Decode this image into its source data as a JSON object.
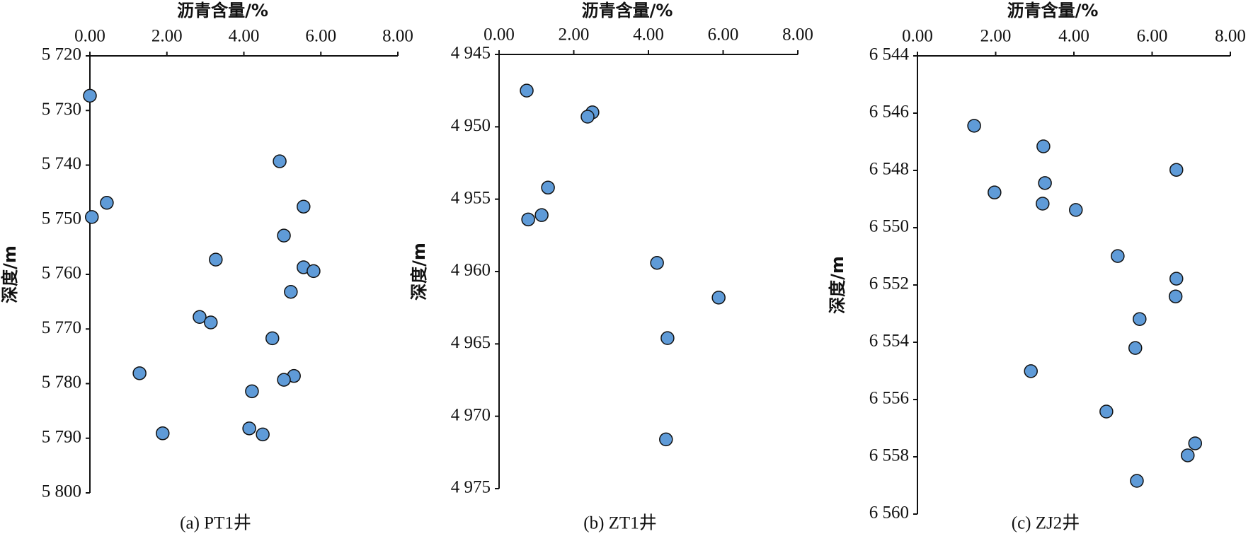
{
  "chart_data": [
    {
      "type": "scatter",
      "caption": "(a) PT1井",
      "x_label": "沥青含量/%",
      "y_label": "深度/m",
      "x_axis_position": "top",
      "y_inverted": true,
      "color": "#5f9bd8",
      "xlim": [
        0,
        8
      ],
      "ylim": [
        5720,
        5800
      ],
      "xticks": [
        {
          "value": 0,
          "label": "0.00"
        },
        {
          "value": 2,
          "label": "2.00"
        },
        {
          "value": 4,
          "label": "4.00"
        },
        {
          "value": 6,
          "label": "6.00"
        },
        {
          "value": 8,
          "label": "8.00"
        }
      ],
      "yticks": [
        {
          "value": 5720,
          "label": "5 720"
        },
        {
          "value": 5730,
          "label": "5 730"
        },
        {
          "value": 5740,
          "label": "5 740"
        },
        {
          "value": 5750,
          "label": "5 750"
        },
        {
          "value": 5760,
          "label": "5 760"
        },
        {
          "value": 5770,
          "label": "5 770"
        },
        {
          "value": 5780,
          "label": "5 780"
        },
        {
          "value": 5790,
          "label": "5 790"
        },
        {
          "value": 5800,
          "label": "5 800"
        }
      ],
      "x": [
        0.0,
        4.93,
        0.44,
        0.05,
        5.55,
        5.04,
        3.27,
        5.55,
        5.81,
        5.22,
        2.85,
        3.14,
        4.74,
        1.29,
        5.3,
        5.04,
        4.21,
        1.89,
        4.14,
        4.49
      ],
      "values": [
        5727.3,
        5739.3,
        5746.9,
        5749.5,
        5747.6,
        5752.9,
        5757.3,
        5758.7,
        5759.4,
        5763.2,
        5767.8,
        5768.8,
        5771.7,
        5778.1,
        5778.6,
        5779.3,
        5781.4,
        5789.1,
        5788.2,
        5789.3
      ]
    },
    {
      "type": "scatter",
      "caption": "(b) ZT1井",
      "x_label": "沥青含量/%",
      "y_label": "深度/m",
      "x_axis_position": "top",
      "y_inverted": true,
      "color": "#5f9bd8",
      "xlim": [
        0,
        8
      ],
      "ylim": [
        4945,
        4975
      ],
      "xticks": [
        {
          "value": 0,
          "label": "0.00"
        },
        {
          "value": 2,
          "label": "2.00"
        },
        {
          "value": 4,
          "label": "4.00"
        },
        {
          "value": 6,
          "label": "6.00"
        },
        {
          "value": 8,
          "label": "8.00"
        }
      ],
      "yticks": [
        {
          "value": 4945,
          "label": "4 945"
        },
        {
          "value": 4950,
          "label": "4 950"
        },
        {
          "value": 4955,
          "label": "4 955"
        },
        {
          "value": 4960,
          "label": "4 960"
        },
        {
          "value": 4965,
          "label": "4 965"
        },
        {
          "value": 4970,
          "label": "4 970"
        },
        {
          "value": 4975,
          "label": "4 975"
        }
      ],
      "x": [
        0.74,
        2.5,
        2.37,
        1.31,
        0.78,
        1.14,
        4.23,
        5.88,
        4.51,
        4.47
      ],
      "values": [
        4947.5,
        4949.0,
        4949.3,
        4954.2,
        4956.4,
        4956.1,
        4959.4,
        4961.8,
        4964.6,
        4971.6
      ]
    },
    {
      "type": "scatter",
      "caption": "(c) ZJ2井",
      "x_label": "沥青含量/%",
      "y_label": "深度/m",
      "x_axis_position": "top",
      "y_inverted": true,
      "color": "#5f9bd8",
      "xlim": [
        0,
        8
      ],
      "ylim": [
        6544,
        6560
      ],
      "xticks": [
        {
          "value": 0,
          "label": "0.00"
        },
        {
          "value": 2,
          "label": "2.00"
        },
        {
          "value": 4,
          "label": "4.00"
        },
        {
          "value": 6,
          "label": "6.00"
        },
        {
          "value": 8,
          "label": "8.00"
        }
      ],
      "yticks": [
        {
          "value": 6544,
          "label": "6 544"
        },
        {
          "value": 6546,
          "label": "6 546"
        },
        {
          "value": 6548,
          "label": "6 548"
        },
        {
          "value": 6550,
          "label": "6 550"
        },
        {
          "value": 6552,
          "label": "6 552"
        },
        {
          "value": 6554,
          "label": "6 554"
        },
        {
          "value": 6556,
          "label": "6 556"
        },
        {
          "value": 6558,
          "label": "6 558"
        },
        {
          "value": 6560,
          "label": "6 560"
        }
      ],
      "x": [
        1.45,
        3.22,
        6.62,
        1.97,
        3.26,
        3.2,
        4.05,
        5.12,
        6.62,
        6.6,
        5.68,
        5.57,
        2.9,
        4.83,
        7.1,
        6.91,
        5.61
      ],
      "values": [
        6546.44,
        6547.16,
        6547.98,
        6548.77,
        6548.44,
        6549.16,
        6549.38,
        6550.99,
        6551.78,
        6552.4,
        6553.19,
        6554.2,
        6555.01,
        6556.42,
        6557.53,
        6557.95,
        6558.84
      ]
    }
  ]
}
